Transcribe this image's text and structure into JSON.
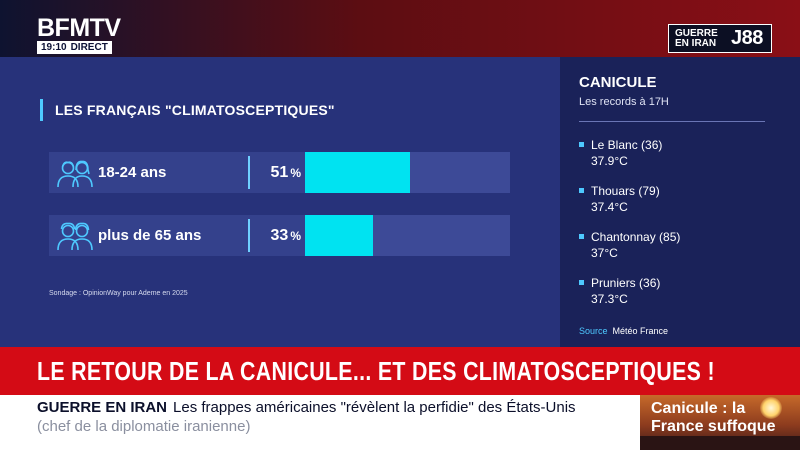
{
  "header": {
    "logo": "BFMTV",
    "time": "19:10",
    "live_label": "DIRECT",
    "badge_text": "GUERRE EN IRAN",
    "badge_count": "J88"
  },
  "chart": {
    "title": "LES FRANÇAIS \"CLIMATOSCEPTIQUES\"",
    "note": "Sondage : OpinionWay pour Ademe en 2025"
  },
  "chart_data": {
    "type": "bar",
    "title": "LES FRANÇAIS \"CLIMATOSCEPTIQUES\"",
    "categories": [
      "18-24 ans",
      "plus de 65 ans"
    ],
    "values": [
      51,
      33
    ],
    "value_labels": [
      "51",
      "33"
    ],
    "unit": "%",
    "ylim": [
      0,
      100
    ],
    "colors": {
      "fill": "#00e3f1",
      "track": "#3d4a97"
    }
  },
  "side": {
    "title": "CANICULE",
    "subtitle": "Les records à 17H",
    "records": [
      {
        "place": "Le Blanc (36)",
        "temp": "37.9°C"
      },
      {
        "place": "Thouars (79)",
        "temp": "37.4°C"
      },
      {
        "place": "Chantonnay (85)",
        "temp": "37°C"
      },
      {
        "place": "Pruniers (36)",
        "temp": "37.3°C"
      }
    ],
    "source_label": "Source",
    "source_value": "Météo France"
  },
  "banner": {
    "headline": "LE RETOUR DE LA CANICULE... ET DES CLIMATOSCEPTIQUES !"
  },
  "ticker": {
    "tag": "GUERRE EN IRAN",
    "line1": "Les frappes américaines \"révèlent la perfidie\" des États-Unis",
    "line2": "(chef de la diplomatie iranienne)"
  },
  "promo": {
    "line1": "Canicule : la",
    "line2": "France suffoque"
  },
  "colors": {
    "accent": "#00e3f1",
    "banner": "#d40b15",
    "panel": "#27327a"
  }
}
